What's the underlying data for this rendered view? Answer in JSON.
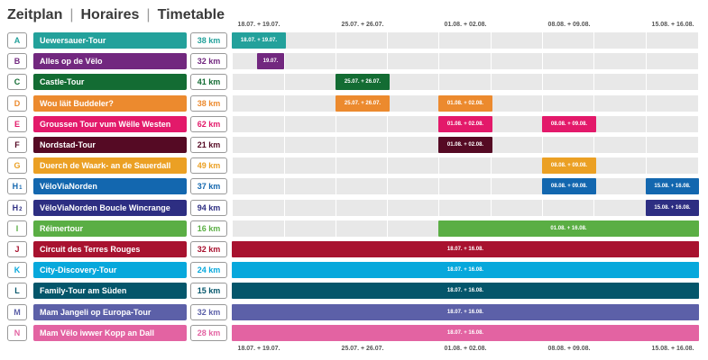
{
  "title": {
    "parts": [
      "Zeitplan",
      "Horaires",
      "Timetable"
    ]
  },
  "chart_data": {
    "type": "gantt",
    "time_columns": [
      "18.07. + 19.07.",
      "25.07. + 26.07.",
      "01.08. + 02.08.",
      "08.08. + 09.08.",
      "15.08. + 16.08."
    ],
    "rows": [
      {
        "letter": "A",
        "sub": "",
        "name": "Uewersauer-Tour",
        "km": "38 km",
        "color": "#23a19b",
        "bars": [
          {
            "label": "18.07. + 19.07.",
            "start": "18.07. + 19.07.",
            "end": "18.07. + 19.07."
          }
        ]
      },
      {
        "letter": "B",
        "sub": "",
        "name": "Alles op de Vëlo",
        "km": "32 km",
        "color": "#72287f",
        "bars": [
          {
            "label": "19.07.",
            "start": "19.07.",
            "end": "19.07."
          }
        ]
      },
      {
        "letter": "C",
        "sub": "",
        "name": "Castle-Tour",
        "km": "41 km",
        "color": "#136c33",
        "bars": [
          {
            "label": "25.07. + 26.07.",
            "start": "25.07. + 26.07.",
            "end": "25.07. + 26.07."
          }
        ]
      },
      {
        "letter": "D",
        "sub": "",
        "name": "Wou läit Buddeler?",
        "km": "38 km",
        "color": "#ec8a2e",
        "bars": [
          {
            "label": "25.07. + 26.07.",
            "start": "25.07. + 26.07.",
            "end": "25.07. + 26.07."
          },
          {
            "label": "01.08. + 02.08.",
            "start": "01.08. + 02.08.",
            "end": "01.08. + 02.08."
          }
        ]
      },
      {
        "letter": "E",
        "sub": "",
        "name": "Groussen Tour vum Wëlle Westen",
        "km": "62 km",
        "color": "#e3196a",
        "bars": [
          {
            "label": "01.08. + 02.08.",
            "start": "01.08. + 02.08.",
            "end": "01.08. + 02.08."
          },
          {
            "label": "08.08. + 09.08.",
            "start": "08.08. + 09.08.",
            "end": "08.08. + 09.08."
          }
        ]
      },
      {
        "letter": "F",
        "sub": "",
        "name": "Nordstad-Tour",
        "km": "21 km",
        "color": "#550a24",
        "bars": [
          {
            "label": "01.08. + 02.08.",
            "start": "01.08. + 02.08.",
            "end": "01.08. + 02.08."
          }
        ]
      },
      {
        "letter": "G",
        "sub": "",
        "name": "Duerch de Waark- an de Sauerdall",
        "km": "49 km",
        "color": "#eba024",
        "bars": [
          {
            "label": "08.08. + 09.08.",
            "start": "08.08. + 09.08.",
            "end": "08.08. + 09.08."
          }
        ]
      },
      {
        "letter": "H",
        "sub": "1",
        "name": "VëloViaNorden",
        "km": "37 km",
        "color": "#1367af",
        "bars": [
          {
            "label": "08.08. + 09.08.",
            "start": "08.08. + 09.08.",
            "end": "08.08. + 09.08."
          },
          {
            "label": "15.08. + 16.08.",
            "start": "15.08. + 16.08.",
            "end": "15.08. + 16.08."
          }
        ]
      },
      {
        "letter": "H",
        "sub": "2",
        "name": "VëloViaNorden Boucle Wincrange",
        "km": "94 km",
        "color": "#2d2e82",
        "bars": [
          {
            "label": "15.08. + 16.08.",
            "start": "15.08. + 16.08.",
            "end": "15.08. + 16.08."
          }
        ]
      },
      {
        "letter": "I",
        "sub": "",
        "name": "Réimertour",
        "km": "16 km",
        "color": "#5aae44",
        "bars": [
          {
            "label": "01.08. + 16.08.",
            "start": "01.08. + 02.08.",
            "end": "15.08. + 16.08."
          }
        ]
      },
      {
        "letter": "J",
        "sub": "",
        "name": "Circuit des Terres Rouges",
        "km": "32 km",
        "color": "#a8122f",
        "bars": [
          {
            "label": "18.07. + 16.08.",
            "start": "18.07. + 19.07.",
            "end": "15.08. + 16.08."
          }
        ]
      },
      {
        "letter": "K",
        "sub": "",
        "name": "City-Discovery-Tour",
        "km": "24 km",
        "color": "#07a8dc",
        "bars": [
          {
            "label": "18.07. + 16.08.",
            "start": "18.07. + 19.07.",
            "end": "15.08. + 16.08."
          }
        ]
      },
      {
        "letter": "L",
        "sub": "",
        "name": "Family-Tour am Süden",
        "km": "15 km",
        "color": "#04566b",
        "bars": [
          {
            "label": "18.07. + 16.08.",
            "start": "18.07. + 19.07.",
            "end": "15.08. + 16.08."
          }
        ]
      },
      {
        "letter": "M",
        "sub": "",
        "name": "Mam Jangeli op Europa-Tour",
        "km": "32 km",
        "color": "#5c60a8",
        "bars": [
          {
            "label": "18.07. + 16.08.",
            "start": "18.07. + 19.07.",
            "end": "15.08. + 16.08."
          }
        ]
      },
      {
        "letter": "N",
        "sub": "",
        "name": "Mam Vëlo iwwer Kopp an Dall",
        "km": "28 km",
        "color": "#e363a2",
        "bars": [
          {
            "label": "18.07. + 16.08.",
            "start": "18.07. + 19.07.",
            "end": "15.08. + 16.08."
          }
        ]
      }
    ]
  }
}
